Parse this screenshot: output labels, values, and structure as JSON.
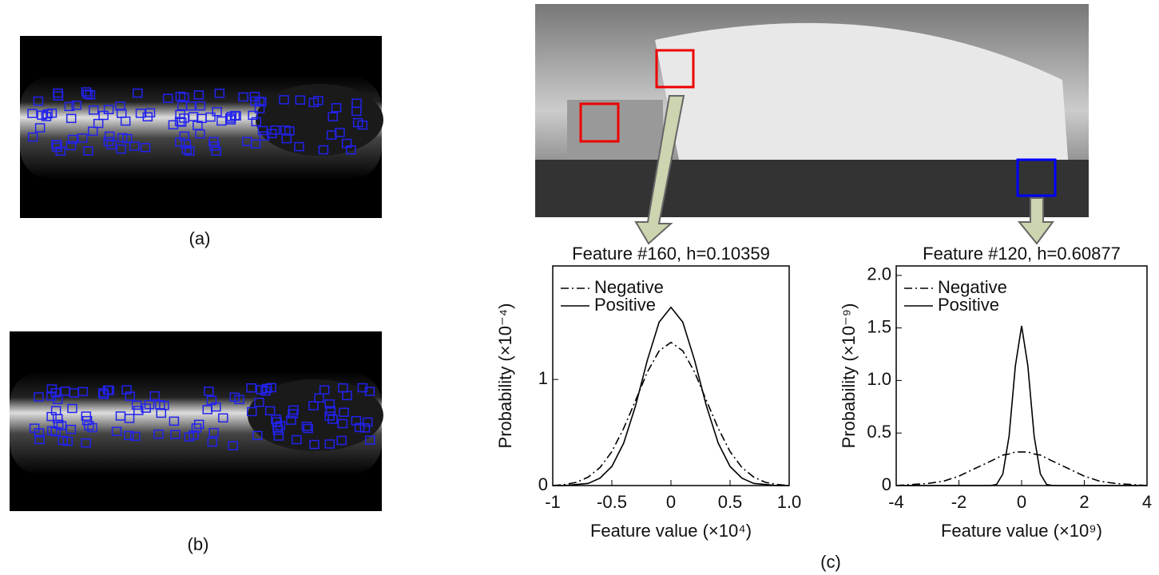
{
  "panel_labels": [
    "(a)",
    "(b)",
    "(c)"
  ],
  "chart_data": [
    {
      "type": "line",
      "title": "Feature #160, h=0.10359",
      "x_label": "Feature value (×10⁴)",
      "y_label": "Probability (×10⁻⁴)",
      "x": [
        -1,
        -0.9,
        -0.8,
        -0.7,
        -0.6,
        -0.5,
        -0.4,
        -0.3,
        -0.2,
        -0.1,
        0,
        0.1,
        0.2,
        0.3,
        0.4,
        0.5,
        0.6,
        0.7,
        0.8,
        0.9,
        1
      ],
      "series": [
        {
          "name": "Negative",
          "color": "#000000",
          "dash": "dashdot",
          "values": [
            0,
            0.01,
            0.03,
            0.08,
            0.17,
            0.32,
            0.54,
            0.8,
            1.07,
            1.27,
            1.35,
            1.27,
            1.07,
            0.8,
            0.54,
            0.32,
            0.17,
            0.08,
            0.03,
            0.01,
            0
          ]
        },
        {
          "name": "Positive",
          "color": "#000000",
          "dash": "solid",
          "values": [
            0,
            0,
            0.01,
            0.02,
            0.07,
            0.18,
            0.4,
            0.75,
            1.18,
            1.54,
            1.68,
            1.54,
            1.18,
            0.75,
            0.4,
            0.18,
            0.07,
            0.02,
            0.01,
            0,
            0
          ]
        }
      ],
      "xlim": [
        -1,
        1
      ],
      "xticks": [
        -1,
        -0.5,
        0,
        0.5,
        {
          "value": 1,
          "label": "1.0"
        }
      ],
      "ylim": [
        0,
        2.07
      ],
      "yticks": [
        0,
        1
      ],
      "legend": "top-left",
      "grid": false
    },
    {
      "type": "line",
      "title": "Feature #120, h=0.60877",
      "x_label": "Feature value (×10⁹)",
      "y_label": "Probability (×10⁻⁹)",
      "x": [
        -4,
        -3.5,
        -3,
        -2.5,
        -2,
        -1.5,
        -1,
        -0.8,
        -0.6,
        -0.4,
        -0.2,
        0,
        0.2,
        0.4,
        0.6,
        0.8,
        1,
        1.5,
        2,
        2.5,
        3,
        3.5,
        4
      ],
      "series": [
        {
          "name": "Negative",
          "color": "#000000",
          "dash": "dashdot",
          "values": [
            0,
            0.01,
            0.02,
            0.04,
            0.09,
            0.16,
            0.23,
            0.26,
            0.29,
            0.3,
            0.32,
            0.32,
            0.32,
            0.3,
            0.29,
            0.26,
            0.23,
            0.16,
            0.09,
            0.04,
            0.02,
            0.01,
            0
          ]
        },
        {
          "name": "Positive",
          "color": "#000000",
          "dash": "solid",
          "values": [
            0,
            0,
            0,
            0,
            0,
            0,
            0,
            0.01,
            0.11,
            0.47,
            1.14,
            1.52,
            1.14,
            0.47,
            0.11,
            0.01,
            0,
            0,
            0,
            0,
            0,
            0,
            0
          ]
        }
      ],
      "xlim": [
        -4,
        4
      ],
      "xticks": [
        -4,
        -2,
        0,
        2,
        4
      ],
      "ylim": [
        0,
        2.09
      ],
      "yticks": [
        0,
        0.5,
        {
          "value": 1,
          "label": "1.0"
        },
        1.5,
        {
          "value": 2,
          "label": "2.0"
        }
      ],
      "legend": "top-left",
      "grid": false
    }
  ]
}
